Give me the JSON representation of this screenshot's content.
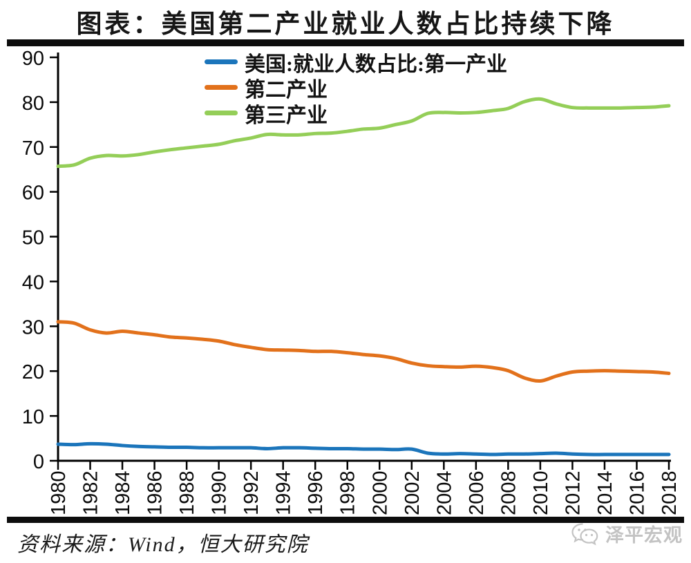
{
  "title": "图表：美国第二产业就业人数占比持续下降",
  "footer": {
    "source": "资料来源：Wind，恒大研究院",
    "watermark_text": "泽平宏观",
    "watermark_icon": "wechat-icon",
    "watermark_color": "#c3c3c3"
  },
  "colors": {
    "axis": "#000000",
    "divider_bar": "#0d0d0d",
    "series_primary": "#1B75BB",
    "series_secondary": "#E2711B",
    "series_tertiary": "#94CE58"
  },
  "chart_data": {
    "type": "line",
    "title": "图表：美国第二产业就业人数占比持续下降",
    "xlabel": "",
    "ylabel": "",
    "ylim": [
      0,
      90
    ],
    "y_ticks": [
      0,
      10,
      20,
      30,
      40,
      50,
      60,
      70,
      80,
      90
    ],
    "x_ticks": [
      1980,
      1982,
      1984,
      1986,
      1988,
      1990,
      1992,
      1994,
      1996,
      1998,
      2000,
      2002,
      2004,
      2006,
      2008,
      2010,
      2012,
      2014,
      2016,
      2018
    ],
    "grid": false,
    "legend_position": "top-inside",
    "x": [
      1980,
      1981,
      1982,
      1983,
      1984,
      1985,
      1986,
      1987,
      1988,
      1989,
      1990,
      1991,
      1992,
      1993,
      1994,
      1995,
      1996,
      1997,
      1998,
      1999,
      2000,
      2001,
      2002,
      2003,
      2004,
      2005,
      2006,
      2007,
      2008,
      2009,
      2010,
      2011,
      2012,
      2013,
      2014,
      2015,
      2016,
      2017,
      2018
    ],
    "series": [
      {
        "name": "美国:就业人数占比:第一产业",
        "color": "#1B75BB",
        "values": [
          3.7,
          3.6,
          3.8,
          3.7,
          3.4,
          3.2,
          3.1,
          3.0,
          3.0,
          2.9,
          2.9,
          2.9,
          2.9,
          2.7,
          2.9,
          2.9,
          2.8,
          2.7,
          2.7,
          2.6,
          2.6,
          2.5,
          2.6,
          1.7,
          1.5,
          1.6,
          1.5,
          1.4,
          1.5,
          1.5,
          1.6,
          1.7,
          1.5,
          1.4,
          1.4,
          1.4,
          1.4,
          1.4,
          1.4
        ]
      },
      {
        "name": "第二产业",
        "color": "#E2711B",
        "values": [
          31.0,
          30.7,
          29.2,
          28.5,
          28.9,
          28.5,
          28.1,
          27.6,
          27.4,
          27.1,
          26.7,
          25.9,
          25.3,
          24.8,
          24.7,
          24.6,
          24.4,
          24.4,
          24.1,
          23.7,
          23.4,
          22.8,
          21.8,
          21.2,
          21.0,
          20.9,
          21.1,
          20.8,
          20.1,
          18.5,
          17.8,
          18.9,
          19.8,
          20.0,
          20.1,
          20.0,
          19.9,
          19.8,
          19.5
        ]
      },
      {
        "name": "第三产业",
        "color": "#94CE58",
        "values": [
          65.7,
          66.0,
          67.5,
          68.1,
          68.0,
          68.3,
          68.9,
          69.4,
          69.8,
          70.2,
          70.6,
          71.4,
          72.0,
          72.8,
          72.7,
          72.7,
          73.0,
          73.1,
          73.5,
          74.0,
          74.2,
          75.0,
          75.8,
          77.5,
          77.7,
          77.6,
          77.7,
          78.1,
          78.6,
          80.1,
          80.7,
          79.6,
          78.8,
          78.7,
          78.7,
          78.7,
          78.8,
          78.9,
          79.2
        ]
      }
    ]
  }
}
